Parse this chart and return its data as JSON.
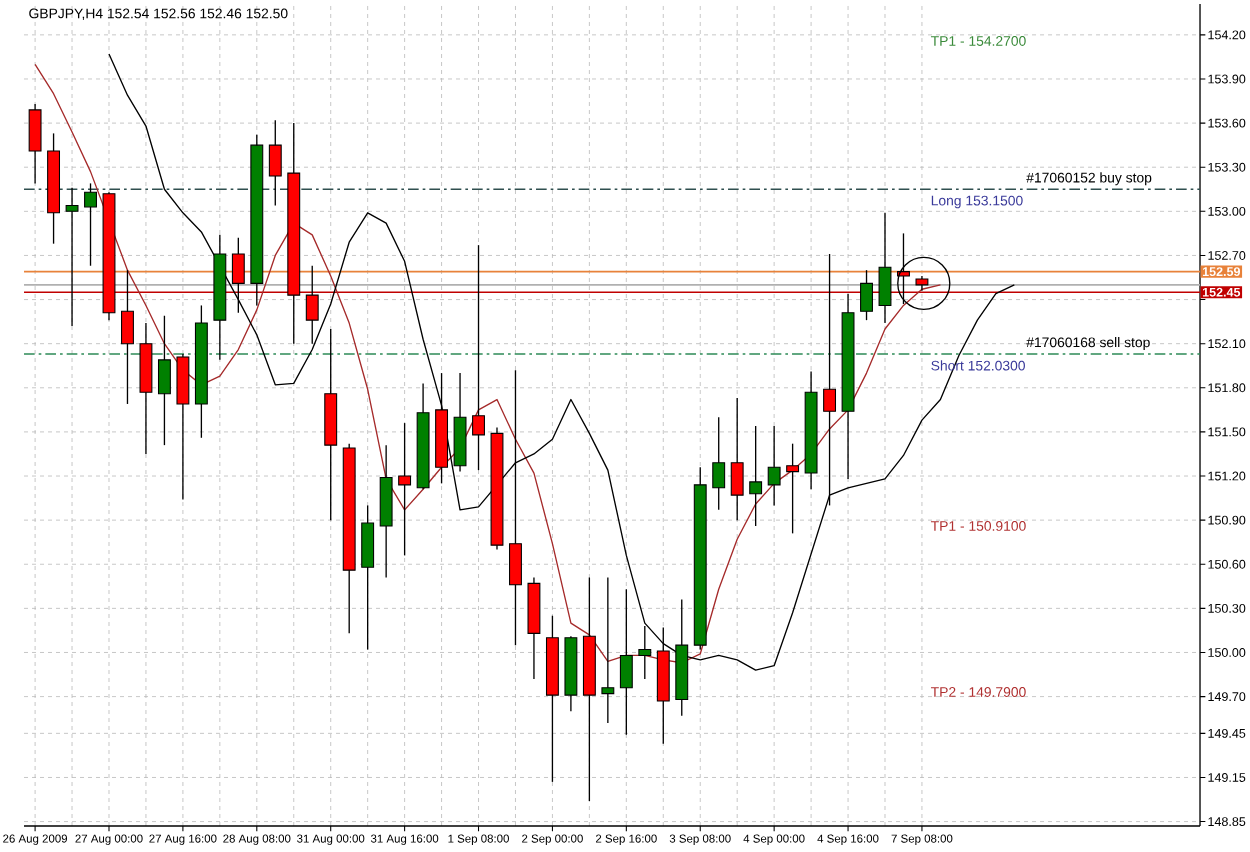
{
  "chart_data": {
    "type": "candlestick",
    "title": "GBPJPY,H4  152.54 152.56 152.46 152.50",
    "categories": [
      "26 Aug 2009",
      null,
      null,
      null,
      "27 Aug 00:00",
      null,
      null,
      null,
      "27 Aug 16:00",
      null,
      null,
      null,
      "28 Aug 08:00",
      null,
      null,
      null,
      "31 Aug 00:00",
      null,
      null,
      null,
      "31 Aug 16:00",
      null,
      null,
      null,
      "1 Sep 08:00",
      null,
      null,
      null,
      "2 Sep 00:00",
      null,
      null,
      null,
      "2 Sep 16:00",
      null,
      null,
      null,
      "3 Sep 08:00",
      null,
      null,
      null,
      "4 Sep 00:00",
      null,
      null,
      null,
      "4 Sep 16:00",
      null,
      null,
      null,
      "7 Sep 08:00",
      null,
      null,
      null,
      null,
      null,
      null,
      null,
      null,
      null,
      null,
      null,
      null,
      null,
      null,
      null
    ],
    "ohlc": [
      [
        153.69,
        153.73,
        153.19,
        153.41
      ],
      [
        153.41,
        153.53,
        152.78,
        152.99
      ],
      [
        153.0,
        153.16,
        152.22,
        153.04
      ],
      [
        153.03,
        153.19,
        152.63,
        153.13
      ],
      [
        153.12,
        153.13,
        152.26,
        152.31
      ],
      [
        152.32,
        152.6,
        151.69,
        152.1
      ],
      [
        152.1,
        152.24,
        151.35,
        151.77
      ],
      [
        151.76,
        152.29,
        151.41,
        151.99
      ],
      [
        152.01,
        152.03,
        151.04,
        151.69
      ],
      [
        151.69,
        152.36,
        151.46,
        152.24
      ],
      [
        152.26,
        152.84,
        151.99,
        152.71
      ],
      [
        152.71,
        152.82,
        152.31,
        152.51
      ],
      [
        152.51,
        153.52,
        152.36,
        153.45
      ],
      [
        153.45,
        153.62,
        153.04,
        153.24
      ],
      [
        153.26,
        153.6,
        152.1,
        152.43
      ],
      [
        152.43,
        152.63,
        152.1,
        152.26
      ],
      [
        151.76,
        152.2,
        150.9,
        151.41
      ],
      [
        151.39,
        151.42,
        150.13,
        150.56
      ],
      [
        150.58,
        151.0,
        150.02,
        150.88
      ],
      [
        150.86,
        151.41,
        150.51,
        151.19
      ],
      [
        151.2,
        151.56,
        150.66,
        151.14
      ],
      [
        151.12,
        151.83,
        151.11,
        151.63
      ],
      [
        151.65,
        151.9,
        151.15,
        151.26
      ],
      [
        151.27,
        151.9,
        151.23,
        151.6
      ],
      [
        151.61,
        152.77,
        151.24,
        151.48
      ],
      [
        151.49,
        151.53,
        150.7,
        150.73
      ],
      [
        150.74,
        151.92,
        150.05,
        150.46
      ],
      [
        150.47,
        150.51,
        149.82,
        150.13
      ],
      [
        150.1,
        150.25,
        149.12,
        149.71
      ],
      [
        149.71,
        150.11,
        149.6,
        150.1
      ],
      [
        150.11,
        150.51,
        148.99,
        149.71
      ],
      [
        149.72,
        150.51,
        149.52,
        149.76
      ],
      [
        149.76,
        150.43,
        149.44,
        149.98
      ],
      [
        149.98,
        150.18,
        149.82,
        150.02
      ],
      [
        150.01,
        150.17,
        149.38,
        149.67
      ],
      [
        149.68,
        150.36,
        149.57,
        150.05
      ],
      [
        150.05,
        151.26,
        150.02,
        151.14
      ],
      [
        151.12,
        151.6,
        150.97,
        151.29
      ],
      [
        151.29,
        151.73,
        150.9,
        151.07
      ],
      [
        151.08,
        151.54,
        150.86,
        151.16
      ],
      [
        151.14,
        151.54,
        151.0,
        151.26
      ],
      [
        151.27,
        151.42,
        150.81,
        151.23
      ],
      [
        151.22,
        151.91,
        151.11,
        151.77
      ],
      [
        151.79,
        152.71,
        151.0,
        151.64
      ],
      [
        151.64,
        152.44,
        151.18,
        152.31
      ],
      [
        152.32,
        152.6,
        152.26,
        152.51
      ],
      [
        152.36,
        152.99,
        152.24,
        152.62
      ],
      [
        152.59,
        152.85,
        152.37,
        152.56
      ],
      [
        152.54,
        152.56,
        152.46,
        152.5
      ],
      null,
      null,
      null,
      null,
      null,
      null,
      null,
      null,
      null,
      null,
      null,
      null,
      null,
      null,
      null
    ],
    "series": [
      {
        "type": "line",
        "color": "#a52a2a",
        "values": [
          154.0,
          153.8,
          153.54,
          153.27,
          null,
          152.6,
          152.36,
          152.1,
          151.92,
          151.82,
          151.88,
          152.06,
          152.33,
          152.7,
          152.92,
          152.84,
          152.56,
          152.24,
          151.79,
          151.18,
          150.97,
          151.11,
          151.26,
          151.39,
          151.65,
          151.72,
          151.45,
          151.22,
          150.74,
          150.2,
          150.12,
          149.94,
          149.98,
          149.98,
          149.95,
          149.93,
          149.99,
          150.43,
          150.77,
          151.01,
          151.15,
          151.24,
          151.35,
          151.52,
          151.65,
          151.9,
          152.2,
          152.36,
          152.47,
          152.5,
          null,
          null,
          null,
          null,
          null,
          null,
          null,
          null,
          null,
          null,
          null,
          null,
          null,
          null
        ]
      },
      {
        "type": "line",
        "color": "#000000",
        "values": [
          null,
          null,
          null,
          null,
          154.07,
          153.79,
          153.58,
          153.15,
          152.99,
          152.86,
          152.63,
          152.4,
          152.16,
          151.82,
          151.83,
          152.06,
          152.37,
          152.79,
          152.99,
          152.92,
          152.66,
          152.13,
          151.68,
          150.97,
          150.99,
          151.14,
          151.29,
          151.35,
          151.45,
          151.72,
          151.49,
          151.24,
          150.66,
          150.2,
          150.06,
          149.98,
          149.95,
          149.98,
          149.95,
          149.88,
          149.91,
          150.27,
          150.67,
          151.07,
          151.12,
          151.15,
          151.18,
          151.34,
          151.58,
          151.72,
          152.02,
          152.26,
          152.44,
          152.5,
          null,
          null,
          null,
          null,
          null,
          null,
          null,
          null,
          null,
          null
        ]
      }
    ],
    "ylim": [
      148.82,
      154.41
    ],
    "yticks": [
      {
        "value": 148.85,
        "label": "148.85"
      },
      {
        "value": 149.15,
        "label": "149.15"
      },
      {
        "value": 149.45,
        "label": "149.45"
      },
      {
        "value": 149.7,
        "label": "149.70"
      },
      {
        "value": 150.0,
        "label": "150.00"
      },
      {
        "value": 150.3,
        "label": "150.30"
      },
      {
        "value": 150.6,
        "label": "150.60"
      },
      {
        "value": 150.9,
        "label": "150.90"
      },
      {
        "value": 151.2,
        "label": "151.20"
      },
      {
        "value": 151.5,
        "label": "151.50"
      },
      {
        "value": 151.8,
        "label": "151.80"
      },
      {
        "value": 152.1,
        "label": "152.10"
      },
      {
        "value": 152.4,
        "label": null
      },
      {
        "value": 152.7,
        "label": "152.70"
      },
      {
        "value": 153.0,
        "label": "153.00"
      },
      {
        "value": 153.3,
        "label": "153.30"
      },
      {
        "value": 153.6,
        "label": "153.60"
      },
      {
        "value": 153.9,
        "label": "153.90"
      },
      {
        "value": 154.2,
        "label": "154.20"
      }
    ],
    "grid": true,
    "ref_lines": [
      {
        "axis": "y",
        "value": 153.15,
        "label": "#17060152 buy stop",
        "color": "#2f4f4f",
        "line_style": "dashed"
      },
      {
        "axis": "y",
        "value": 152.03,
        "label": "#17060168 sell stop",
        "color": "#2e8b57",
        "line_style": "dashed"
      },
      {
        "axis": "y",
        "value": 152.59,
        "label": "152.59",
        "color": "#e8823a",
        "line_style": "solid"
      },
      {
        "axis": "y",
        "value": 152.5,
        "color": "#b0b0b0",
        "line_style": "solid"
      },
      {
        "axis": "y",
        "value": 152.45,
        "label": "152.45",
        "color": "#c00000",
        "line_style": "solid"
      }
    ],
    "annotations": [
      "TP1 - 154.2700",
      {
        "text": "Long  153.1500",
        "y": 153.15
      },
      {
        "text": "Short  152.0300",
        "y": 152.03
      },
      "TP1 - 150.9100",
      "TP2 - 149.7900"
    ]
  }
}
